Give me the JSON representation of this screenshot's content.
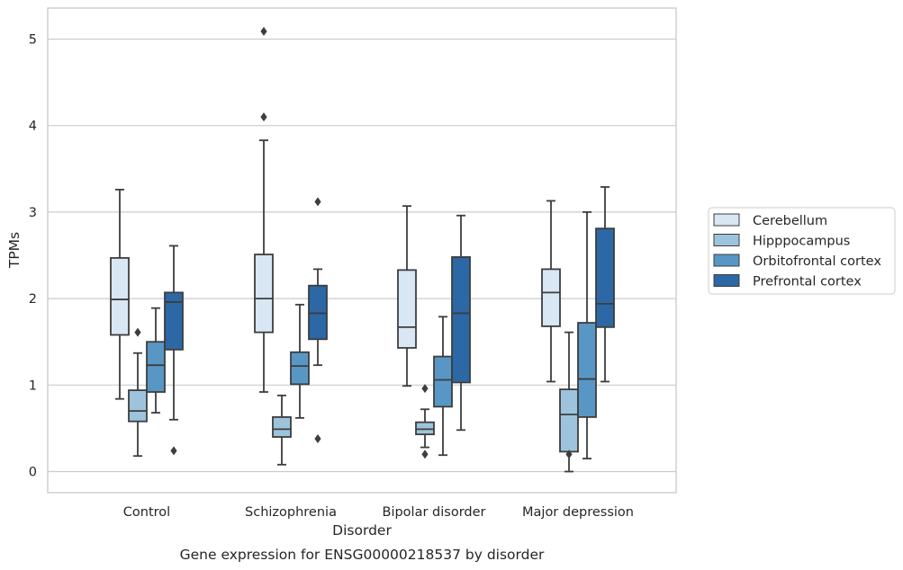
{
  "chart_data": {
    "type": "box",
    "xlabel": "Disorder",
    "ylabel": "TPMs",
    "caption": "Gene expression for ENSG00000218537 by disorder",
    "ylim": [
      -0.25,
      5.35
    ],
    "yticks": [
      0,
      1,
      2,
      3,
      4,
      5
    ],
    "categories": [
      "Control",
      "Schizophrenia",
      "Bipolar disorder",
      "Major depression"
    ],
    "grid": "horizontal",
    "legend_position": "right",
    "series": [
      {
        "name": "Cerebellum",
        "color": "#d9e6f4",
        "boxes": [
          {
            "whislo": 0.84,
            "q1": 1.58,
            "med": 1.99,
            "q3": 2.47,
            "whishi": 3.26,
            "fliers": []
          },
          {
            "whislo": 0.92,
            "q1": 1.61,
            "med": 2.0,
            "q3": 2.51,
            "whishi": 3.83,
            "fliers": [
              4.1,
              5.09
            ]
          },
          {
            "whislo": 0.99,
            "q1": 1.43,
            "med": 1.67,
            "q3": 2.33,
            "whishi": 3.07,
            "fliers": []
          },
          {
            "whislo": 1.04,
            "q1": 1.68,
            "med": 2.07,
            "q3": 2.34,
            "whishi": 3.13,
            "fliers": []
          }
        ]
      },
      {
        "name": "Hipppocampus",
        "color": "#9dc4dc",
        "boxes": [
          {
            "whislo": 0.18,
            "q1": 0.58,
            "med": 0.7,
            "q3": 0.94,
            "whishi": 1.37,
            "fliers": [
              1.61
            ]
          },
          {
            "whislo": 0.08,
            "q1": 0.4,
            "med": 0.49,
            "q3": 0.63,
            "whishi": 0.88,
            "fliers": []
          },
          {
            "whislo": 0.28,
            "q1": 0.43,
            "med": 0.49,
            "q3": 0.57,
            "whishi": 0.72,
            "fliers": [
              0.2,
              0.96
            ]
          },
          {
            "whislo": 0.0,
            "q1": 0.23,
            "med": 0.66,
            "q3": 0.95,
            "whishi": 1.61,
            "fliers": [
              0.2
            ]
          }
        ]
      },
      {
        "name": "Orbitofrontal cortex",
        "color": "#5897c5",
        "boxes": [
          {
            "whislo": 0.68,
            "q1": 0.92,
            "med": 1.23,
            "q3": 1.5,
            "whishi": 1.89,
            "fliers": []
          },
          {
            "whislo": 0.62,
            "q1": 1.01,
            "med": 1.22,
            "q3": 1.38,
            "whishi": 1.93,
            "fliers": []
          },
          {
            "whislo": 0.19,
            "q1": 0.75,
            "med": 1.06,
            "q3": 1.33,
            "whishi": 1.79,
            "fliers": []
          },
          {
            "whislo": 0.15,
            "q1": 0.63,
            "med": 1.07,
            "q3": 1.72,
            "whishi": 3.0,
            "fliers": []
          }
        ]
      },
      {
        "name": "Prefrontal cortex",
        "color": "#2b68a5",
        "boxes": [
          {
            "whislo": 0.6,
            "q1": 1.41,
            "med": 1.96,
            "q3": 2.07,
            "whishi": 2.61,
            "fliers": [
              0.24
            ]
          },
          {
            "whislo": 1.23,
            "q1": 1.53,
            "med": 1.83,
            "q3": 2.15,
            "whishi": 2.34,
            "fliers": [
              0.38,
              3.12
            ]
          },
          {
            "whislo": 0.48,
            "q1": 1.03,
            "med": 1.83,
            "q3": 2.48,
            "whishi": 2.96,
            "fliers": []
          },
          {
            "whislo": 1.04,
            "q1": 1.67,
            "med": 1.94,
            "q3": 2.81,
            "whishi": 3.29,
            "fliers": []
          }
        ]
      }
    ]
  }
}
